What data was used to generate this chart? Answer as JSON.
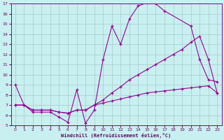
{
  "xlabel": "Windchill (Refroidissement éolien,°C)",
  "bg_color": "#c8f0f0",
  "grid_color": "#a8c8c8",
  "line_color": "#990099",
  "xlim": [
    -0.5,
    23.5
  ],
  "ylim": [
    5,
    17
  ],
  "xticks": [
    0,
    1,
    2,
    3,
    4,
    5,
    6,
    7,
    8,
    9,
    10,
    11,
    12,
    13,
    14,
    15,
    16,
    17,
    18,
    19,
    20,
    21,
    22,
    23
  ],
  "yticks": [
    5,
    6,
    7,
    8,
    9,
    10,
    11,
    12,
    13,
    14,
    15,
    16,
    17
  ],
  "curve1_x": [
    0,
    1,
    2,
    3,
    4,
    5,
    6,
    7,
    8,
    9,
    10,
    11,
    12,
    13,
    14,
    15,
    16,
    17,
    20,
    21,
    22,
    23
  ],
  "curve1_y": [
    9.0,
    7.0,
    6.3,
    6.3,
    6.3,
    5.8,
    5.3,
    8.5,
    5.2,
    6.5,
    11.5,
    14.8,
    13.0,
    15.5,
    16.8,
    17.1,
    17.0,
    16.3,
    14.8,
    11.5,
    9.5,
    9.3
  ],
  "curve2_x": [
    0,
    1,
    2,
    3,
    4,
    5,
    6,
    7,
    8,
    9,
    10,
    11,
    12,
    13,
    14,
    15,
    16,
    17,
    18,
    19,
    20,
    21,
    22,
    23
  ],
  "curve2_y": [
    7.0,
    7.0,
    6.5,
    6.5,
    6.5,
    6.3,
    6.2,
    6.5,
    6.5,
    7.0,
    7.5,
    8.2,
    8.8,
    9.5,
    10.0,
    10.5,
    11.0,
    11.5,
    12.0,
    12.5,
    13.2,
    13.8,
    11.5,
    8.2
  ],
  "curve3_x": [
    0,
    1,
    2,
    3,
    4,
    5,
    6,
    7,
    8,
    9,
    10,
    11,
    12,
    13,
    14,
    15,
    16,
    17,
    18,
    19,
    20,
    21,
    22,
    23
  ],
  "curve3_y": [
    7.0,
    7.0,
    6.5,
    6.5,
    6.5,
    6.3,
    6.2,
    6.5,
    6.5,
    7.0,
    7.2,
    7.4,
    7.6,
    7.8,
    8.0,
    8.2,
    8.3,
    8.4,
    8.5,
    8.6,
    8.7,
    8.8,
    8.9,
    8.2
  ]
}
